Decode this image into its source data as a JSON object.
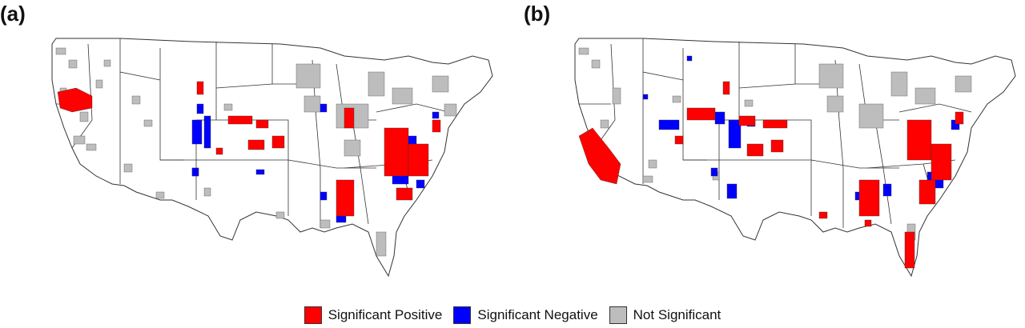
{
  "panels": [
    {
      "label": "(a)"
    },
    {
      "label": "(b)"
    }
  ],
  "legend": {
    "items": [
      {
        "label": "Significant Positive",
        "color": "#ff0000"
      },
      {
        "label": "Significant Negative",
        "color": "#0000ff"
      },
      {
        "label": "Not Significant",
        "color": "#bdbdbd"
      }
    ]
  },
  "colors": {
    "positive": "#ff0000",
    "negative": "#0000ff",
    "not_significant": "#bdbdbd",
    "boundary": "#333333",
    "background": "#ffffff"
  }
}
